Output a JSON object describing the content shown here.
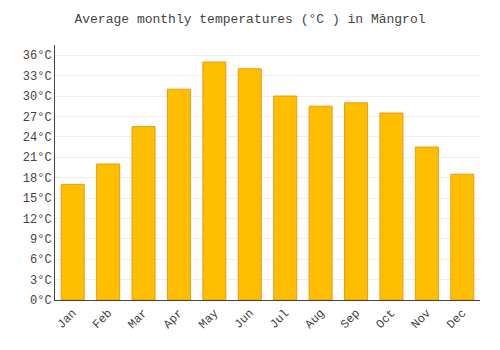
{
  "chart_data": {
    "type": "bar",
    "title": "Average monthly temperatures (°C ) in Māngrol",
    "categories": [
      "Jan",
      "Feb",
      "Mar",
      "Apr",
      "May",
      "Jun",
      "Jul",
      "Aug",
      "Sep",
      "Oct",
      "Nov",
      "Dec"
    ],
    "values": [
      17,
      20,
      25.5,
      31,
      35,
      34,
      30,
      28.5,
      29,
      27.5,
      22.5,
      18.5
    ],
    "color": "#FFBE00",
    "ylim": [
      0,
      37.5
    ],
    "yticks": [
      {
        "value": 0,
        "label": "0°C"
      },
      {
        "value": 3,
        "label": "3°C"
      },
      {
        "value": 6,
        "label": "6°C"
      },
      {
        "value": 9,
        "label": "9°C"
      },
      {
        "value": 12,
        "label": "12°C"
      },
      {
        "value": 15,
        "label": "15°C"
      },
      {
        "value": 18,
        "label": "18°C"
      },
      {
        "value": 21,
        "label": "21°C"
      },
      {
        "value": 24,
        "label": "24°C"
      },
      {
        "value": 27,
        "label": "27°C"
      },
      {
        "value": 30,
        "label": "30°C"
      },
      {
        "value": 33,
        "label": "33°C"
      },
      {
        "value": 36,
        "label": "36°C"
      }
    ],
    "grid": true
  }
}
